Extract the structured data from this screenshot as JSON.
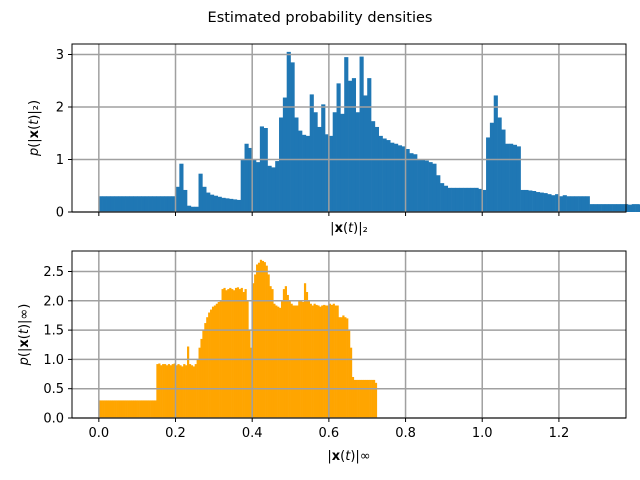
{
  "figure": {
    "title": "Estimated probability densities"
  },
  "chart_data": [
    {
      "type": "bar",
      "name": "l2-norm-histogram",
      "xlabel": "|x(t)|₂",
      "ylabel": "p(|x(t)|₂)",
      "xlim": [
        -0.07,
        1.375
      ],
      "ylim": [
        0,
        3.2
      ],
      "xticks": [
        0.0,
        0.2,
        0.4,
        0.6,
        0.8,
        1.0,
        1.2
      ],
      "yticks": [
        0,
        1,
        2,
        3
      ],
      "ytick_labels": [
        "0",
        "1",
        "2",
        "3"
      ],
      "show_xtick_labels": false,
      "grid": true,
      "color": "#1f77b4",
      "bin_width": 0.01,
      "x_start": 0.0,
      "values": [
        0.3,
        0.3,
        0.3,
        0.3,
        0.3,
        0.3,
        0.3,
        0.3,
        0.3,
        0.3,
        0.3,
        0.3,
        0.3,
        0.3,
        0.3,
        0.3,
        0.3,
        0.3,
        0.3,
        0.3,
        0.48,
        0.92,
        0.42,
        0.12,
        0.1,
        0.1,
        0.73,
        0.48,
        0.37,
        0.33,
        0.31,
        0.29,
        0.27,
        0.26,
        0.25,
        0.24,
        0.23,
        0.99,
        1.3,
        1.22,
        0.99,
        0.95,
        1.63,
        1.6,
        0.88,
        0.85,
        0.97,
        1.8,
        2.18,
        3.05,
        2.85,
        1.8,
        1.55,
        1.47,
        1.45,
        2.24,
        1.9,
        1.62,
        2.05,
        1.48,
        1.45,
        1.9,
        2.45,
        1.87,
        2.95,
        2.5,
        2.55,
        1.9,
        2.96,
        2.22,
        2.55,
        1.73,
        1.62,
        1.45,
        1.4,
        1.37,
        1.32,
        1.3,
        1.27,
        1.25,
        1.2,
        1.12,
        1.1,
        1.0,
        1.0,
        0.98,
        0.95,
        0.92,
        0.7,
        0.55,
        0.5,
        0.46,
        0.46,
        0.46,
        0.46,
        0.46,
        0.46,
        0.46,
        0.46,
        0.44,
        0.42,
        1.42,
        1.7,
        2.22,
        1.8,
        1.57,
        1.3,
        1.3,
        1.28,
        1.25,
        0.42,
        0.42,
        0.41,
        0.4,
        0.38,
        0.37,
        0.36,
        0.34,
        0.32,
        0.34,
        0.3,
        0.32,
        0.3,
        0.3,
        0.3,
        0.3,
        0.3,
        0.3,
        0.15,
        0.15,
        0.15,
        0.15,
        0.15,
        0.15,
        0.15,
        0.15,
        0.15,
        0.15,
        0.14,
        0.15,
        0.15,
        0.14
      ]
    },
    {
      "type": "bar",
      "name": "linf-norm-histogram",
      "xlabel": "|x(t)|∞",
      "ylabel": "p(|x(t)|∞)",
      "xlim": [
        -0.07,
        1.375
      ],
      "ylim": [
        0,
        2.85
      ],
      "xticks": [
        0.0,
        0.2,
        0.4,
        0.6,
        0.8,
        1.0,
        1.2
      ],
      "xtick_labels": [
        "0.0",
        "0.2",
        "0.4",
        "0.6",
        "0.8",
        "1.0",
        "1.2"
      ],
      "yticks": [
        0.0,
        0.5,
        1.0,
        1.5,
        2.0,
        2.5
      ],
      "ytick_labels": [
        "0.0",
        "0.5",
        "1.0",
        "1.5",
        "2.0",
        "2.5"
      ],
      "show_xtick_labels": true,
      "grid": true,
      "color": "#ffa500",
      "bin_width": 0.005,
      "x_start": 0.0,
      "values": [
        0.3,
        0.3,
        0.3,
        0.3,
        0.3,
        0.3,
        0.3,
        0.3,
        0.3,
        0.3,
        0.3,
        0.3,
        0.3,
        0.3,
        0.3,
        0.3,
        0.3,
        0.3,
        0.3,
        0.3,
        0.3,
        0.3,
        0.3,
        0.3,
        0.3,
        0.3,
        0.3,
        0.3,
        0.3,
        0.3,
        0.92,
        0.93,
        0.9,
        0.92,
        0.92,
        0.9,
        0.92,
        0.9,
        0.92,
        0.93,
        0.9,
        0.92,
        0.9,
        0.88,
        0.92,
        0.9,
        1.22,
        0.92,
        0.9,
        0.88,
        0.92,
        1.0,
        1.2,
        1.35,
        1.5,
        1.62,
        1.72,
        1.8,
        1.85,
        1.9,
        1.92,
        1.95,
        1.98,
        2.0,
        2.2,
        2.22,
        2.18,
        2.2,
        2.22,
        2.2,
        2.18,
        2.22,
        2.23,
        2.2,
        2.22,
        2.15,
        2.2,
        2.0,
        1.5,
        1.2,
        2.3,
        2.45,
        2.62,
        2.65,
        2.7,
        2.68,
        2.66,
        2.6,
        2.45,
        2.25,
        2.2,
        1.95,
        1.92,
        1.9,
        1.88,
        2.0,
        2.2,
        2.25,
        2.1,
        2.0,
        1.95,
        1.92,
        1.92,
        1.92,
        2.0,
        2.0,
        1.98,
        2.3,
        2.15,
        2.0,
        1.95,
        1.92,
        1.95,
        1.93,
        1.92,
        1.9,
        1.92,
        1.93,
        1.92,
        1.92,
        1.95,
        1.93,
        1.95,
        1.92,
        1.92,
        1.72,
        1.72,
        1.75,
        1.72,
        1.7,
        1.5,
        1.2,
        0.7,
        0.65,
        0.65,
        0.65,
        0.65,
        0.65,
        0.65,
        0.65,
        0.65,
        0.65,
        0.65,
        0.65,
        0.6
      ]
    }
  ]
}
